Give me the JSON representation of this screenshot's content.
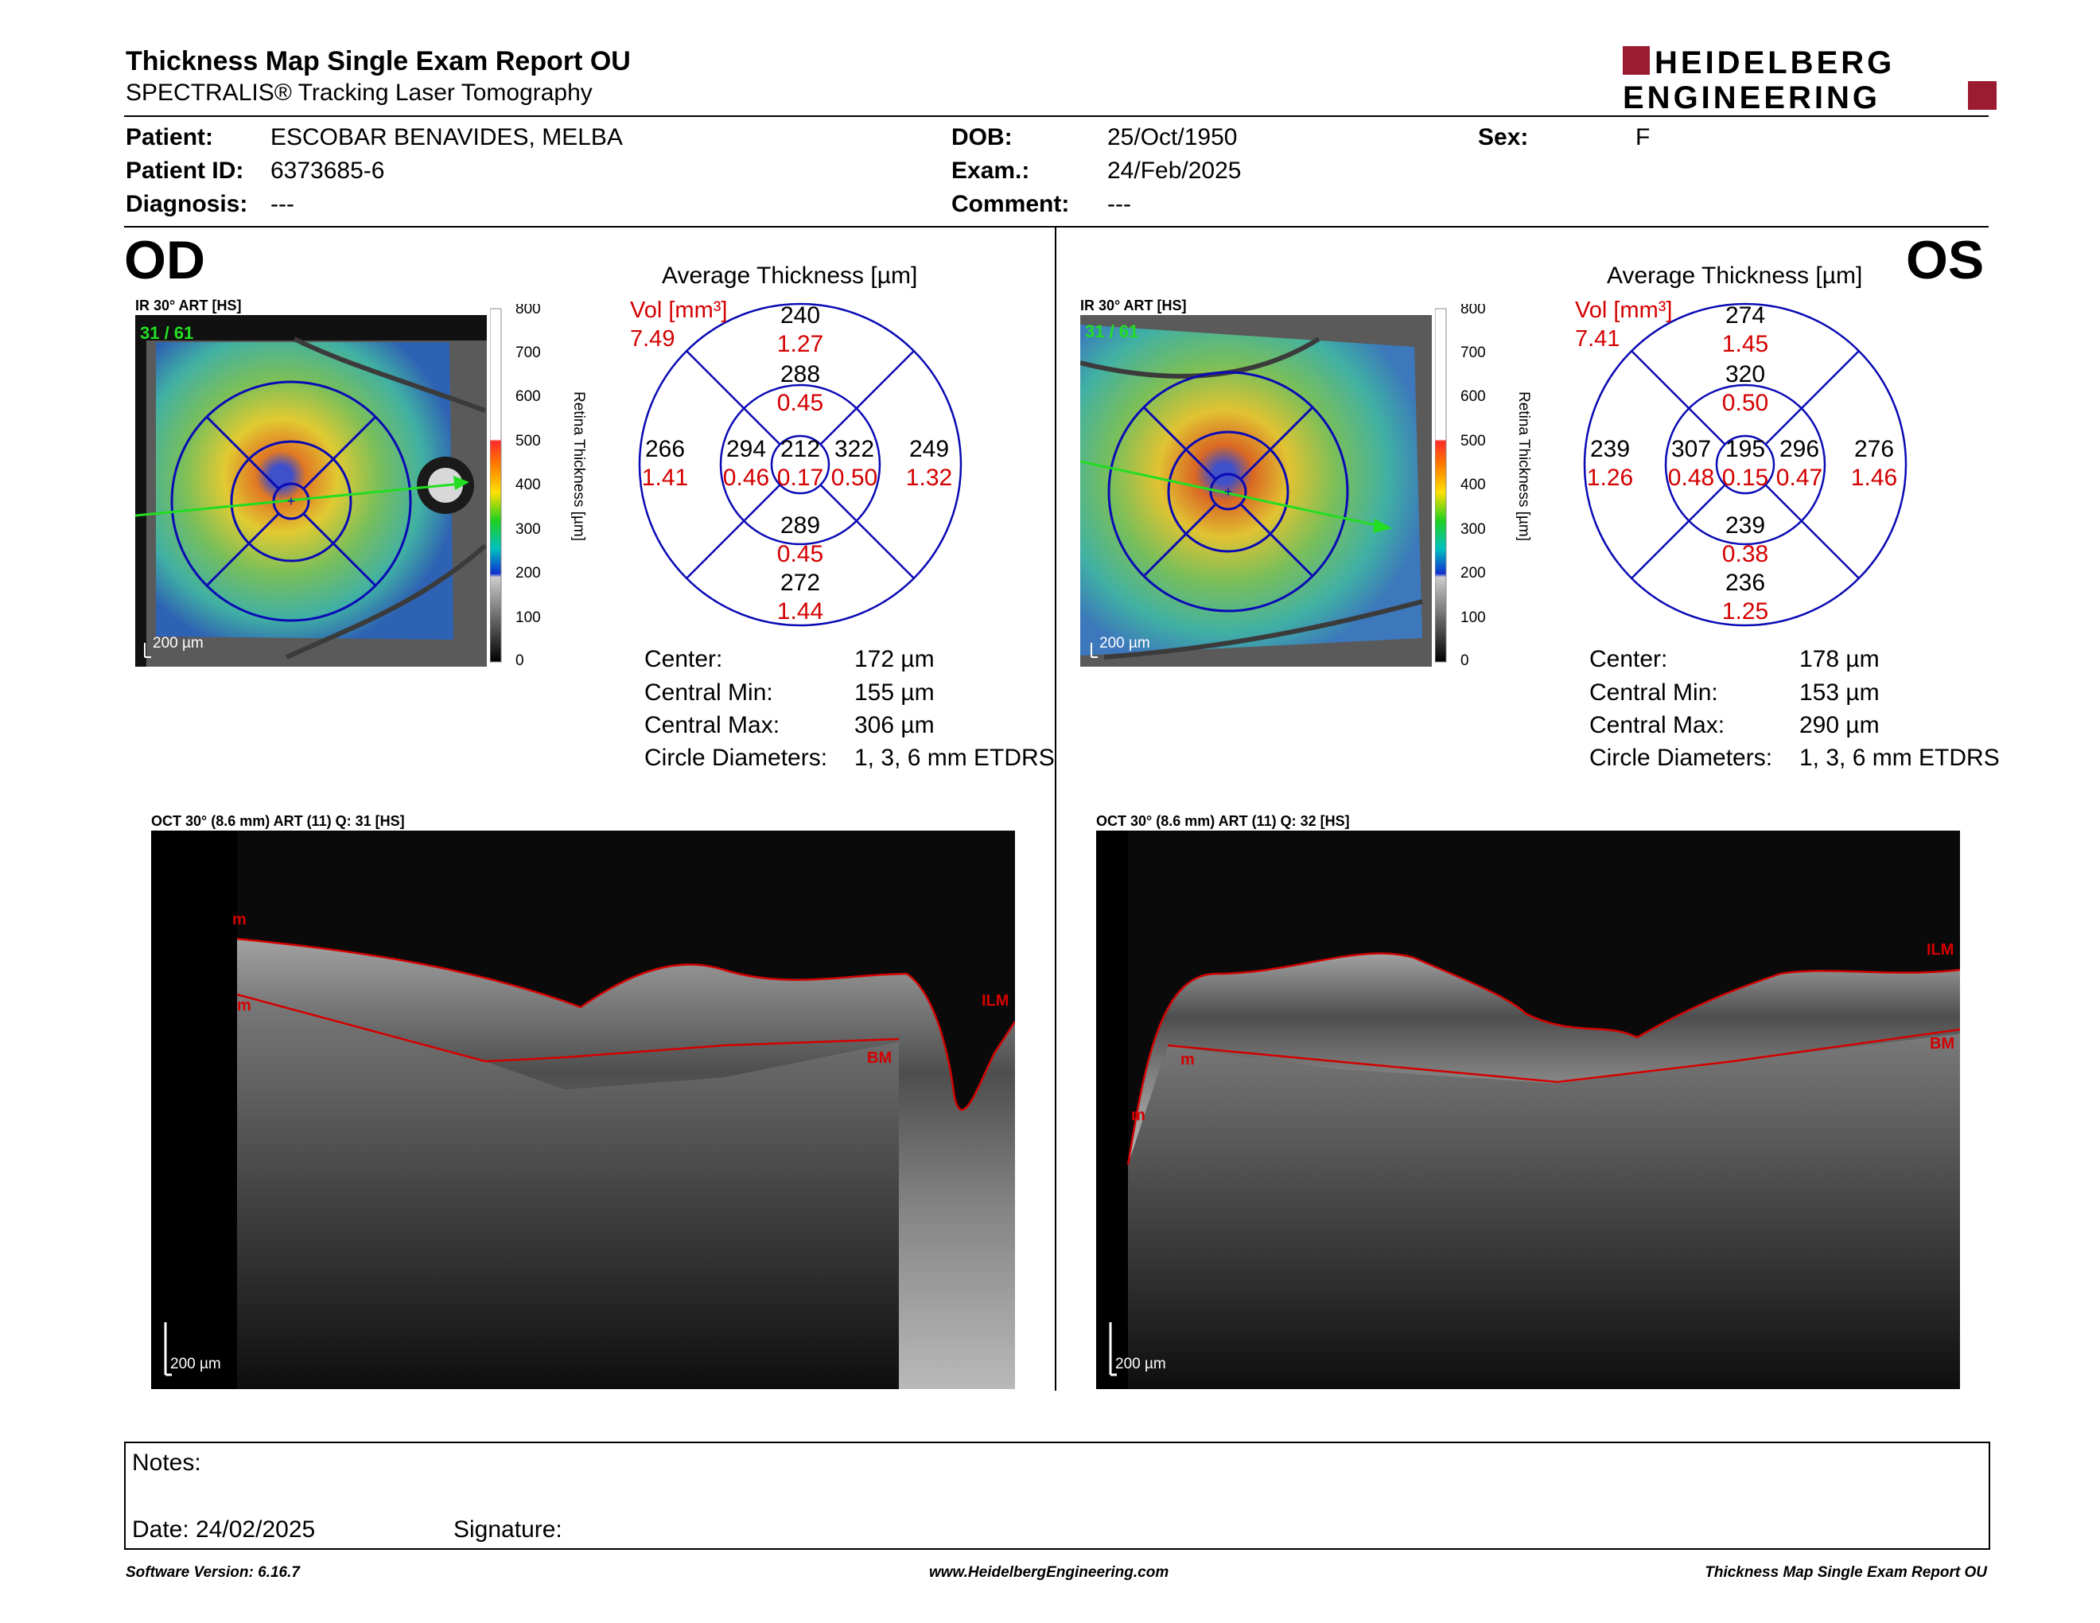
{
  "header": {
    "title": "Thickness Map Single Exam Report OU",
    "subtitle": "SPECTRALIS® Tracking Laser Tomography",
    "logo_line1": "HEIDELBERG",
    "logo_line2": "ENGINEERING"
  },
  "patient": {
    "patient_label": "Patient:",
    "patient_value": "ESCOBAR BENAVIDES, MELBA",
    "id_label": "Patient ID:",
    "id_value": "6373685-6",
    "diagnosis_label": "Diagnosis:",
    "diagnosis_value": "---",
    "dob_label": "DOB:",
    "dob_value": "25/Oct/1950",
    "exam_label": "Exam.:",
    "exam_value": "24/Feb/2025",
    "comment_label": "Comment:",
    "comment_value": "---",
    "sex_label": "Sex:",
    "sex_value": "F"
  },
  "od": {
    "eye": "OD",
    "ir_label": "IR 30° ART [HS]",
    "frame": "31 / 61",
    "scale": "200 µm",
    "avg_title": "Average Thickness [µm]",
    "vol_label": "Vol [mm³]",
    "vol_value": "7.49",
    "center": "212",
    "center_vol": "0.17",
    "inner_sup": "288",
    "inner_sup_vol": "0.45",
    "inner_inf": "289",
    "inner_inf_vol": "0.45",
    "inner_left": "294",
    "inner_left_vol": "0.46",
    "inner_right": "322",
    "inner_right_vol": "0.50",
    "outer_sup": "240",
    "outer_sup_vol": "1.27",
    "outer_inf": "272",
    "outer_inf_vol": "1.44",
    "outer_left": "266",
    "outer_left_vol": "1.41",
    "outer_right": "249",
    "outer_right_vol": "1.32",
    "stats": {
      "center_label": "Center:",
      "center_value": "172 µm",
      "min_label": "Central Min:",
      "min_value": "155 µm",
      "max_label": "Central Max:",
      "max_value": "306 µm",
      "diam_label": "Circle Diameters:",
      "diam_value": "1, 3, 6 mm ETDRS"
    },
    "oct_label": "OCT 30° (8.6 mm) ART (11) Q: 31 [HS]",
    "oct_scale": "200 µm",
    "ilm": "ILM",
    "bm": "BM",
    "m": "m"
  },
  "os": {
    "eye": "OS",
    "ir_label": "IR 30° ART [HS]",
    "frame": "31 / 61",
    "scale": "200 µm",
    "avg_title": "Average Thickness [µm]",
    "vol_label": "Vol [mm³]",
    "vol_value": "7.41",
    "center": "195",
    "center_vol": "0.15",
    "inner_sup": "320",
    "inner_sup_vol": "0.50",
    "inner_inf": "239",
    "inner_inf_vol": "0.38",
    "inner_left": "307",
    "inner_left_vol": "0.48",
    "inner_right": "296",
    "inner_right_vol": "0.47",
    "outer_sup": "274",
    "outer_sup_vol": "1.45",
    "outer_inf": "236",
    "outer_inf_vol": "1.25",
    "outer_left": "239",
    "outer_left_vol": "1.26",
    "outer_right": "276",
    "outer_right_vol": "1.46",
    "stats": {
      "center_label": "Center:",
      "center_value": "178 µm",
      "min_label": "Central Min:",
      "min_value": "153 µm",
      "max_label": "Central Max:",
      "max_value": "290 µm",
      "diam_label": "Circle Diameters:",
      "diam_value": "1, 3, 6 mm ETDRS"
    },
    "oct_label": "OCT 30° (8.6 mm) ART (11) Q: 32 [HS]",
    "oct_scale": "200 µm",
    "ilm": "ILM",
    "bm": "BM",
    "m": "m"
  },
  "colorbar": {
    "ticks": [
      "800",
      "700",
      "600",
      "500",
      "400",
      "300",
      "200",
      "100",
      "0"
    ],
    "title": "Retina   Thickness [µm]"
  },
  "notes": {
    "notes_label": "Notes:",
    "date_label": "Date: 24/02/2025",
    "signature_label": "Signature:"
  },
  "footer": {
    "left": "Software Version: 6.16.7",
    "center": "www.HeidelbergEngineering.com",
    "right": "Thickness Map Single Exam Report OU"
  },
  "colors": {
    "accent_red": "#d40000",
    "grid_blue": "#0a0ab4",
    "logo_red": "#9b1b30",
    "arrow_green": "#22dd22"
  }
}
